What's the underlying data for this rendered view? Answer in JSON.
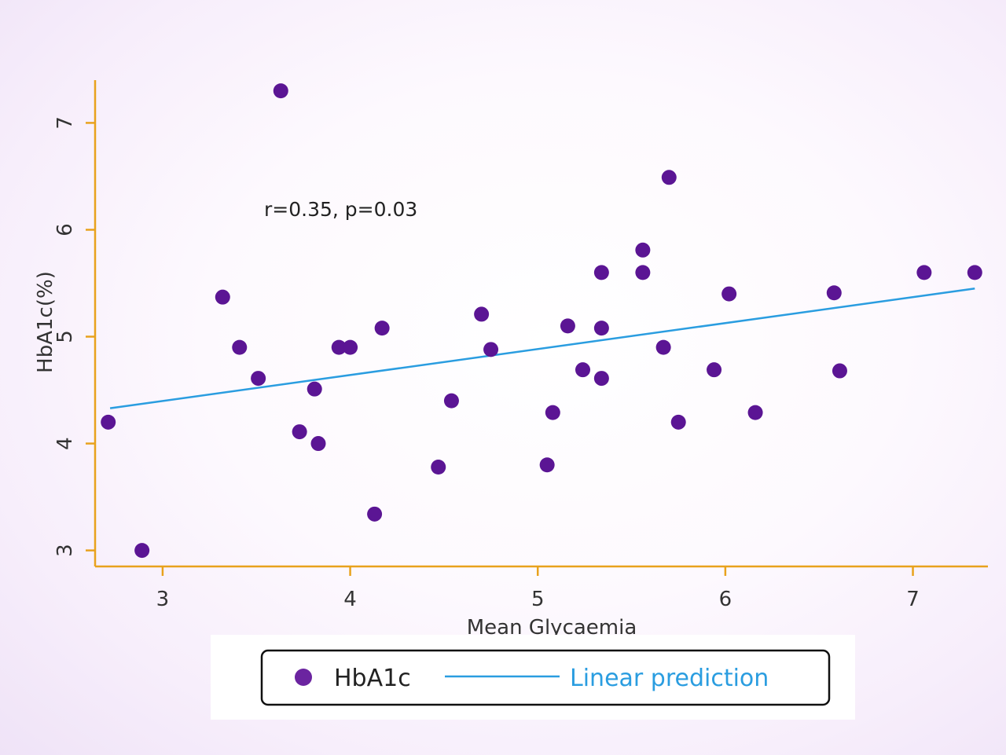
{
  "chart_data": {
    "type": "scatter",
    "title": "",
    "xlabel": "Mean Glycaemia",
    "ylabel": "HbA1c(%)",
    "xlim": [
      2.64,
      7.4
    ],
    "ylim": [
      2.85,
      7.4
    ],
    "xticks": [
      3,
      4,
      5,
      6,
      7
    ],
    "yticks": [
      3,
      4,
      5,
      6,
      7
    ],
    "grid": false,
    "legend_position": "bottom",
    "annotation": "r=0.35, p=0.03",
    "colors": {
      "points": "#5b1594",
      "line": "#2a9de0",
      "axis": "#e8a21d"
    },
    "series": [
      {
        "name": "HbA1c",
        "kind": "scatter",
        "points": [
          [
            2.71,
            4.2
          ],
          [
            2.89,
            3.0
          ],
          [
            3.32,
            5.37
          ],
          [
            3.41,
            4.9
          ],
          [
            3.51,
            4.61
          ],
          [
            3.63,
            7.3
          ],
          [
            3.73,
            4.11
          ],
          [
            3.81,
            4.51
          ],
          [
            3.83,
            4.0
          ],
          [
            3.94,
            4.9
          ],
          [
            4.0,
            4.9
          ],
          [
            4.13,
            3.34
          ],
          [
            4.17,
            5.08
          ],
          [
            4.47,
            3.78
          ],
          [
            4.54,
            4.4
          ],
          [
            4.7,
            5.21
          ],
          [
            4.75,
            4.88
          ],
          [
            5.05,
            3.8
          ],
          [
            5.08,
            4.29
          ],
          [
            5.16,
            5.1
          ],
          [
            5.24,
            4.69
          ],
          [
            5.34,
            5.6
          ],
          [
            5.34,
            5.08
          ],
          [
            5.34,
            4.61
          ],
          [
            5.56,
            5.81
          ],
          [
            5.56,
            5.6
          ],
          [
            5.67,
            4.9
          ],
          [
            5.7,
            6.49
          ],
          [
            5.75,
            4.2
          ],
          [
            5.94,
            4.69
          ],
          [
            6.02,
            5.4
          ],
          [
            6.16,
            4.29
          ],
          [
            6.58,
            5.41
          ],
          [
            6.61,
            4.68
          ],
          [
            7.06,
            5.6
          ],
          [
            7.33,
            5.6
          ]
        ]
      },
      {
        "name": "Linear prediction",
        "kind": "line",
        "points": [
          [
            2.72,
            4.33
          ],
          [
            7.33,
            5.45
          ]
        ]
      }
    ]
  }
}
